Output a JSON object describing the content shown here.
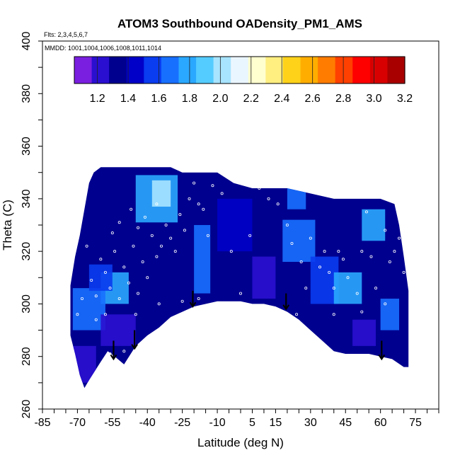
{
  "chart_data": {
    "type": "heatmap",
    "title": "ATOM3 Southbound OADensity_PM1_AMS",
    "flights_note": "Flts: 2,3,4,5,6,7",
    "dates_note": "MMDD: 1001,1004,1006,1008,1011,1014",
    "xlabel": "Latitude (deg N)",
    "ylabel": "Theta (C)",
    "xlim": [
      -85,
      85
    ],
    "ylim": [
      260,
      400
    ],
    "x_tick_values": [
      -85,
      -70,
      -55,
      -40,
      -25,
      -10,
      5,
      15,
      30,
      45,
      60,
      75
    ],
    "x_tick_labels": [
      "-85",
      "-70",
      "-55",
      "-40",
      "-25",
      "-10",
      "5",
      "15",
      "30",
      "45",
      "60",
      "75"
    ],
    "y_tick_values": [
      260,
      280,
      300,
      320,
      340,
      360,
      380,
      400
    ],
    "y_tick_labels": [
      "260",
      "280",
      "300",
      "320",
      "340",
      "360",
      "380",
      "400"
    ],
    "colorbar": {
      "range": [
        1.05,
        3.2
      ],
      "tick_values": [
        1.2,
        1.4,
        1.6,
        1.8,
        2.0,
        2.2,
        2.4,
        2.6,
        2.8,
        3.0,
        3.2
      ],
      "tick_labels": [
        "1.2",
        "1.4",
        "1.6",
        "1.8",
        "2.0",
        "2.2",
        "2.4",
        "2.6",
        "2.8",
        "3.0",
        "3.2"
      ],
      "colors": [
        "#7a1fe0",
        "#2a0fd0",
        "#00008f",
        "#0000c8",
        "#0a3cf0",
        "#1870ff",
        "#2aa8ff",
        "#55ccff",
        "#a8e4ff",
        "#eaf6ff",
        "#ffffd0",
        "#ffee80",
        "#ffd21a",
        "#ffae00",
        "#ff7c00",
        "#ff4000",
        "#ff0000",
        "#d80000",
        "#a80000"
      ]
    },
    "field_upper_boundary": [
      [
        -73,
        307
      ],
      [
        -71,
        318
      ],
      [
        -69,
        326
      ],
      [
        -67,
        336
      ],
      [
        -65,
        346
      ],
      [
        -63,
        350
      ],
      [
        -60,
        352
      ],
      [
        -30,
        352
      ],
      [
        -25,
        350
      ],
      [
        -10,
        350
      ],
      [
        -3,
        346
      ],
      [
        5,
        344
      ],
      [
        20,
        344
      ],
      [
        30,
        342
      ],
      [
        40,
        340
      ],
      [
        50,
        340
      ],
      [
        60,
        340
      ],
      [
        66,
        338
      ],
      [
        68,
        330
      ],
      [
        70,
        318
      ],
      [
        72,
        305
      ]
    ],
    "field_lower_boundary": [
      [
        -73,
        288
      ],
      [
        -71,
        281
      ],
      [
        -69,
        273
      ],
      [
        -67,
        268
      ],
      [
        -65,
        271
      ],
      [
        -60,
        278
      ],
      [
        -57,
        282
      ],
      [
        -54,
        280
      ],
      [
        -50,
        277
      ],
      [
        -45,
        284
      ],
      [
        -40,
        288
      ],
      [
        -35,
        291
      ],
      [
        -30,
        295
      ],
      [
        -25,
        297
      ],
      [
        -20,
        299
      ],
      [
        -10,
        301
      ],
      [
        0,
        301
      ],
      [
        5,
        300
      ],
      [
        10,
        300
      ],
      [
        15,
        299
      ],
      [
        20,
        297
      ],
      [
        25,
        294
      ],
      [
        30,
        290
      ],
      [
        35,
        286
      ],
      [
        40,
        282
      ],
      [
        45,
        281
      ],
      [
        50,
        281
      ],
      [
        55,
        281
      ],
      [
        60,
        280
      ],
      [
        65,
        279
      ],
      [
        70,
        276
      ],
      [
        72,
        276
      ]
    ],
    "background_value": 1.35,
    "field_patches": [
      {
        "lat": [
          -45,
          -27
        ],
        "theta": [
          331,
          349
        ],
        "value": 1.75
      },
      {
        "lat": [
          -38,
          -30
        ],
        "theta": [
          337,
          347
        ],
        "value": 2.05
      },
      {
        "lat": [
          -60,
          -48
        ],
        "theta": [
          300,
          312
        ],
        "value": 1.75
      },
      {
        "lat": [
          -72,
          -58
        ],
        "theta": [
          290,
          306
        ],
        "value": 1.65
      },
      {
        "lat": [
          -65,
          -55
        ],
        "theta": [
          305,
          315
        ],
        "value": 1.6
      },
      {
        "lat": [
          -73,
          -62
        ],
        "theta": [
          270,
          284
        ],
        "value": 1.2
      },
      {
        "lat": [
          -60,
          -45
        ],
        "theta": [
          284,
          296
        ],
        "value": 1.25
      },
      {
        "lat": [
          -20,
          -13
        ],
        "theta": [
          304,
          330
        ],
        "value": 1.7
      },
      {
        "lat": [
          -10,
          5
        ],
        "theta": [
          320,
          340
        ],
        "value": 1.4
      },
      {
        "lat": [
          5,
          15
        ],
        "theta": [
          302,
          318
        ],
        "value": 1.2
      },
      {
        "lat": [
          18,
          32
        ],
        "theta": [
          316,
          332
        ],
        "value": 1.65
      },
      {
        "lat": [
          20,
          28
        ],
        "theta": [
          336,
          344
        ],
        "value": 1.7
      },
      {
        "lat": [
          30,
          42
        ],
        "theta": [
          300,
          318
        ],
        "value": 1.6
      },
      {
        "lat": [
          40,
          52
        ],
        "theta": [
          300,
          312
        ],
        "value": 1.8
      },
      {
        "lat": [
          52,
          62
        ],
        "theta": [
          324,
          336
        ],
        "value": 1.75
      },
      {
        "lat": [
          60,
          68
        ],
        "theta": [
          290,
          302
        ],
        "value": 1.7
      },
      {
        "lat": [
          48,
          58
        ],
        "theta": [
          284,
          294
        ],
        "value": 1.25
      }
    ],
    "sample_points": [
      [
        -64,
        309
      ],
      [
        -62,
        303
      ],
      [
        -60,
        317
      ],
      [
        -58,
        312
      ],
      [
        -56,
        306
      ],
      [
        -54,
        320
      ],
      [
        -52,
        302
      ],
      [
        -50,
        314
      ],
      [
        -48,
        308
      ],
      [
        -46,
        322
      ],
      [
        -44,
        304
      ],
      [
        -42,
        316
      ],
      [
        -40,
        310
      ],
      [
        -38,
        326
      ],
      [
        -36,
        318
      ],
      [
        -34,
        322
      ],
      [
        -32,
        330
      ],
      [
        -30,
        325
      ],
      [
        -26,
        334
      ],
      [
        -24,
        328
      ],
      [
        -22,
        340
      ],
      [
        -20,
        346
      ],
      [
        -18,
        338
      ],
      [
        -16,
        336
      ],
      [
        -12,
        345
      ],
      [
        -8,
        342
      ],
      [
        -4,
        320
      ],
      [
        0,
        304
      ],
      [
        4,
        326
      ],
      [
        8,
        344
      ],
      [
        12,
        340
      ],
      [
        16,
        338
      ],
      [
        20,
        330
      ],
      [
        22,
        323
      ],
      [
        26,
        316
      ],
      [
        28,
        306
      ],
      [
        30,
        325
      ],
      [
        34,
        314
      ],
      [
        36,
        320
      ],
      [
        38,
        312
      ],
      [
        40,
        306
      ],
      [
        42,
        320
      ],
      [
        44,
        317
      ],
      [
        46,
        310
      ],
      [
        50,
        304
      ],
      [
        52,
        320
      ],
      [
        54,
        335
      ],
      [
        56,
        318
      ],
      [
        58,
        306
      ],
      [
        62,
        328
      ],
      [
        64,
        316
      ],
      [
        66,
        320
      ],
      [
        68,
        325
      ],
      [
        70,
        312
      ],
      [
        -68,
        302
      ],
      [
        -70,
        296
      ],
      [
        -66,
        322
      ],
      [
        -62,
        294
      ],
      [
        -58,
        296
      ],
      [
        -55,
        327
      ],
      [
        -52,
        331
      ],
      [
        -47,
        336
      ],
      [
        -44,
        329
      ],
      [
        -41,
        333
      ],
      [
        -36,
        338
      ],
      [
        -28,
        320
      ],
      [
        -14,
        326
      ],
      [
        2,
        300
      ],
      [
        16,
        296
      ],
      [
        24,
        296
      ],
      [
        40,
        296
      ],
      [
        52,
        297
      ],
      [
        62,
        300
      ],
      [
        -50,
        282
      ],
      [
        -56,
        281
      ],
      [
        -45,
        296
      ],
      [
        -35,
        300
      ],
      [
        -25,
        301
      ],
      [
        -18,
        302
      ]
    ],
    "arrows": [
      {
        "lat": -54.5,
        "theta_top": 286,
        "theta_bottom": 279
      },
      {
        "lat": -45.5,
        "theta_top": 290,
        "theta_bottom": 283
      },
      {
        "lat": -20.5,
        "theta_top": 305,
        "theta_bottom": 299
      },
      {
        "lat": 19.5,
        "theta_top": 304,
        "theta_bottom": 298
      },
      {
        "lat": 60.5,
        "theta_top": 286,
        "theta_bottom": 279
      }
    ]
  }
}
